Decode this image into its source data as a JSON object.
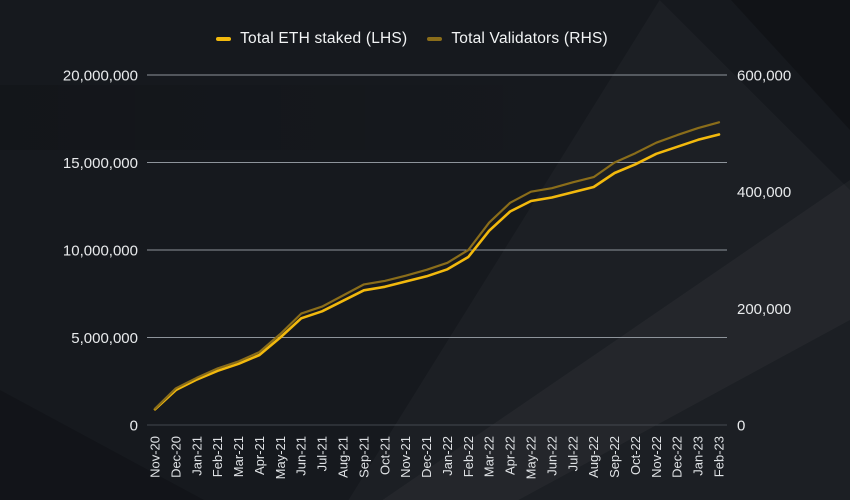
{
  "colors": {
    "background": "#16191e",
    "eth_line": "#f2b90d",
    "validators_line": "#8a6d1a",
    "grid": "#8e949b",
    "text": "#e8eaec"
  },
  "legend": {
    "items": [
      {
        "label": "Total ETH staked (LHS)",
        "color": "#f2b90d"
      },
      {
        "label": "Total Validators (RHS)",
        "color": "#8a6d1a"
      }
    ]
  },
  "chart_data": {
    "type": "line",
    "grid": true,
    "legend_position": "top",
    "categories": [
      "Nov-20",
      "Dec-20",
      "Jan-21",
      "Feb-21",
      "Mar-21",
      "Apr-21",
      "May-21",
      "Jun-21",
      "Jul-21",
      "Aug-21",
      "Sep-21",
      "Oct-21",
      "Nov-21",
      "Dec-21",
      "Jan-22",
      "Feb-22",
      "Mar-22",
      "Apr-22",
      "May-22",
      "Jun-22",
      "Jul-22",
      "Aug-22",
      "Sep-22",
      "Oct-22",
      "Nov-22",
      "Dec-22",
      "Jan-23",
      "Feb-23"
    ],
    "series": [
      {
        "name": "Total ETH staked (LHS)",
        "axis": "left",
        "color": "#f2b90d",
        "stroke_width": 2.6,
        "values": [
          900000,
          2000000,
          2600000,
          3100000,
          3500000,
          4000000,
          5000000,
          6100000,
          6500000,
          7100000,
          7700000,
          7900000,
          8200000,
          8500000,
          8900000,
          9600000,
          11100000,
          12200000,
          12800000,
          13000000,
          13300000,
          13600000,
          14400000,
          14900000,
          15500000,
          15900000,
          16300000,
          16600000
        ]
      },
      {
        "name": "Total Validators (RHS)",
        "axis": "right",
        "color": "#8a6d1a",
        "stroke_width": 2.2,
        "values": [
          28000,
          63000,
          81000,
          97000,
          109000,
          125000,
          156000,
          191000,
          203000,
          222000,
          241000,
          247000,
          256000,
          266000,
          278000,
          300000,
          347000,
          381000,
          400000,
          406000,
          416000,
          425000,
          450000,
          466000,
          484000,
          497000,
          509000,
          519000
        ]
      }
    ],
    "left_axis": {
      "ticks": [
        0,
        5000000,
        10000000,
        15000000,
        20000000
      ],
      "max": 20000000,
      "ylim": [
        0,
        20000000
      ]
    },
    "right_axis": {
      "ticks": [
        0,
        200000,
        400000,
        600000
      ],
      "max": 600000,
      "ylim": [
        0,
        600000
      ]
    }
  }
}
